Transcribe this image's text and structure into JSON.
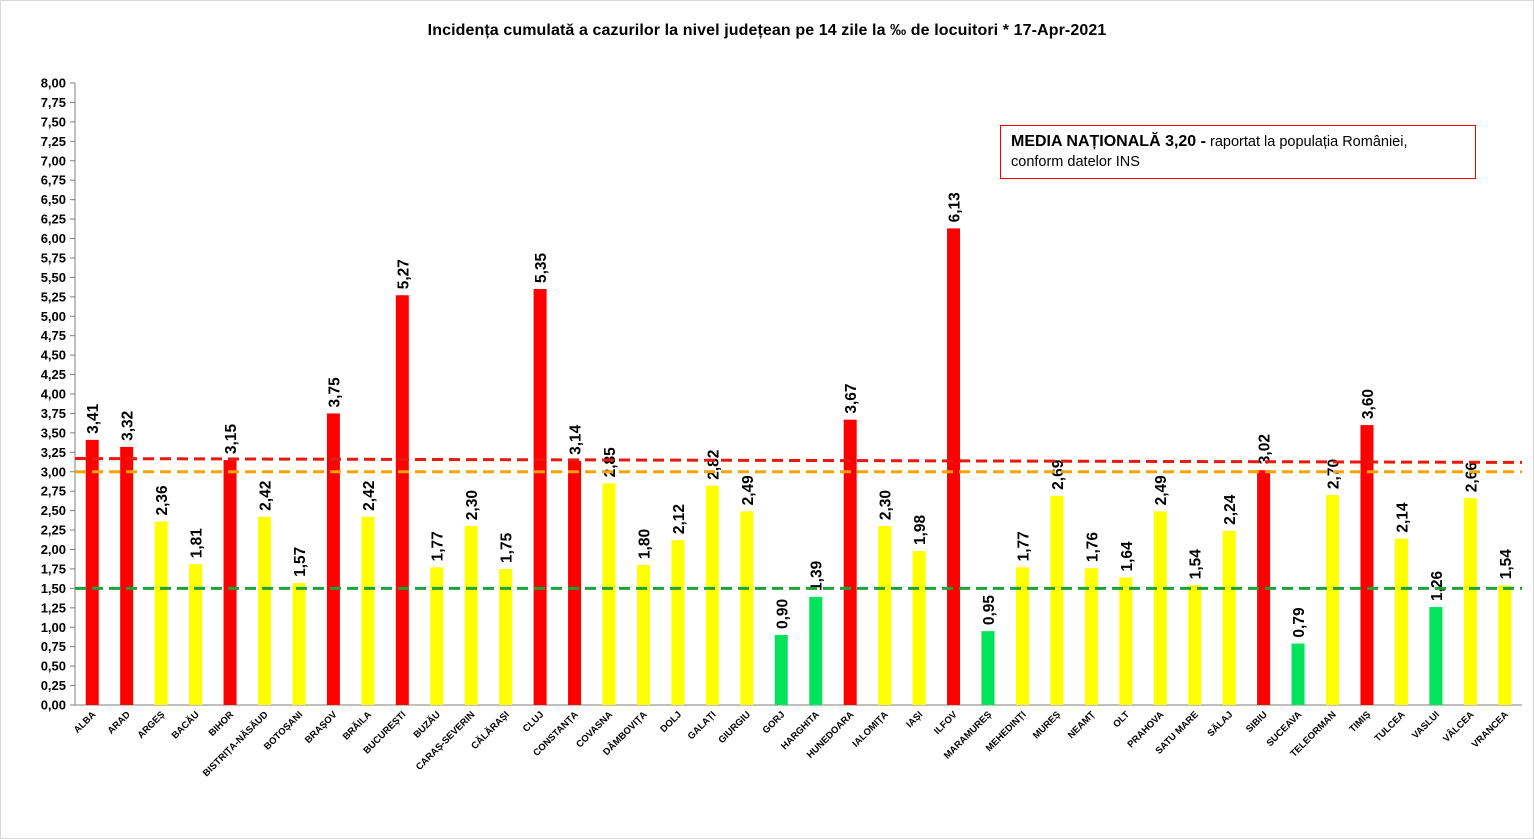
{
  "chart_data": {
    "type": "bar",
    "title": "Incidența cumulată a cazurilor la nivel județean pe 14 zile la ‰ de locuitori *   17-Apr-2021",
    "xlabel": "",
    "ylabel": "",
    "ylim": [
      0,
      8
    ],
    "ytick_step": 0.25,
    "grid": false,
    "legend": "none",
    "categories": [
      "ALBA",
      "ARAD",
      "ARGEȘ",
      "BACĂU",
      "BIHOR",
      "BISTRIȚA-NĂSĂUD",
      "BOTOȘANI",
      "BRAȘOV",
      "BRĂILA",
      "BUCUREȘTI",
      "BUZĂU",
      "CARAȘ-SEVERIN",
      "CĂLĂRAȘI",
      "CLUJ",
      "CONSTANȚA",
      "COVASNA",
      "DÂMBOVIȚA",
      "DOLJ",
      "GALAȚI",
      "GIURGIU",
      "GORJ",
      "HARGHITA",
      "HUNEDOARA",
      "IALOMIȚA",
      "IAȘI",
      "ILFOV",
      "MARAMUREȘ",
      "MEHEDINȚI",
      "MUREȘ",
      "NEAMȚ",
      "OLT",
      "PRAHOVA",
      "SATU MARE",
      "SĂLAJ",
      "SIBIU",
      "SUCEAVA",
      "TELEORMAN",
      "TIMIȘ",
      "TULCEA",
      "VASLUI",
      "VÂLCEA",
      "VRANCEA"
    ],
    "values": [
      3.41,
      3.32,
      2.36,
      1.81,
      3.15,
      2.42,
      1.57,
      3.75,
      2.42,
      5.27,
      1.77,
      2.3,
      1.75,
      5.35,
      3.14,
      2.85,
      1.8,
      2.12,
      2.82,
      2.49,
      0.9,
      1.39,
      3.67,
      2.3,
      1.98,
      6.13,
      0.95,
      1.77,
      2.69,
      1.76,
      1.64,
      2.49,
      1.54,
      2.24,
      3.02,
      0.79,
      2.7,
      3.6,
      2.14,
      1.26,
      2.66,
      1.54
    ],
    "value_labels": [
      "3,41",
      "3,32",
      "2,36",
      "1,81",
      "3,15",
      "2,42",
      "1,57",
      "3,75",
      "2,42",
      "5,27",
      "1,77",
      "2,30",
      "1,75",
      "5,35",
      "3,14",
      "2,85",
      "1,80",
      "2,12",
      "2,82",
      "2,49",
      "0,90",
      "1,39",
      "3,67",
      "2,30",
      "1,98",
      "6,13",
      "0,95",
      "1,77",
      "2,69",
      "1,76",
      "1,64",
      "2,49",
      "1,54",
      "2,24",
      "3,02",
      "0,79",
      "2,70",
      "3,60",
      "2,14",
      "1,26",
      "2,66",
      "1,54"
    ],
    "colors": {
      "red": "#ff0000",
      "yellow": "#ffff00",
      "green": "#00e35b",
      "national_line": "#e8190f",
      "orange_line": "#f5a300",
      "green_line": "#1aa33b"
    },
    "thresholds": {
      "red_min": 3.0,
      "green_max": 1.5
    },
    "reference_lines": [
      {
        "kind": "national-average",
        "y_start": 3.17,
        "y_end": 3.12
      },
      {
        "kind": "threshold-3",
        "y": 3.0
      },
      {
        "kind": "threshold-1.5",
        "y": 1.5
      }
    ],
    "annotation": {
      "bold": "MEDIA NAȚIONALĂ  3,20 -",
      "rest": " raportat la populația României,",
      "line2": "conform datelor INS"
    }
  }
}
